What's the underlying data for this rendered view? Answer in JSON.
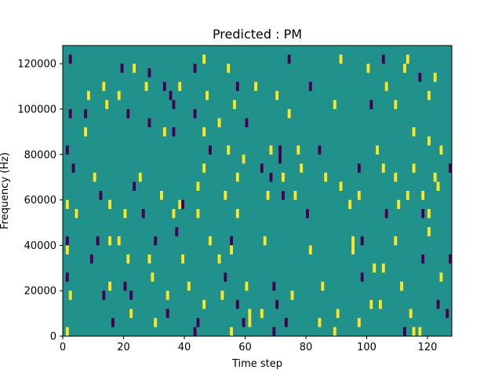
{
  "chart_data": {
    "type": "heatmap",
    "title": "Predicted : PM",
    "xlabel": "Time step",
    "ylabel": "Frequency (Hz)",
    "xlim": [
      0,
      128
    ],
    "ylim": [
      0,
      128000
    ],
    "xticks": [
      0,
      20,
      40,
      60,
      80,
      100,
      120
    ],
    "yticks": [
      0,
      20000,
      40000,
      60000,
      80000,
      100000,
      120000
    ],
    "ytick_labels": [
      "0",
      "20000",
      "40000",
      "60000",
      "80000",
      "100000",
      "120000"
    ],
    "colors": {
      "low": "#440154",
      "mid": "#21918c",
      "high": "#fde725"
    },
    "background_value": "mid",
    "cell_height_hz": 4000,
    "cells": [
      {
        "t": 3,
        "f": 122000,
        "v": "low"
      },
      {
        "t": 20,
        "f": 118000,
        "v": "low"
      },
      {
        "t": 24,
        "f": 118000,
        "v": "high"
      },
      {
        "t": 29,
        "f": 116000,
        "v": "low"
      },
      {
        "t": 44,
        "f": 118000,
        "v": "low"
      },
      {
        "t": 47,
        "f": 122000,
        "v": "high"
      },
      {
        "t": 55,
        "f": 118000,
        "v": "high"
      },
      {
        "t": 75,
        "f": 122000,
        "v": "low"
      },
      {
        "t": 92,
        "f": 122000,
        "v": "high"
      },
      {
        "t": 101,
        "f": 118000,
        "v": "high"
      },
      {
        "t": 106,
        "f": 122000,
        "v": "low"
      },
      {
        "t": 113,
        "f": 118000,
        "v": "high"
      },
      {
        "t": 114,
        "f": 122000,
        "v": "high"
      },
      {
        "t": 118,
        "f": 114000,
        "v": "low"
      },
      {
        "t": 123,
        "f": 114000,
        "v": "high"
      },
      {
        "t": 9,
        "f": 106000,
        "v": "high"
      },
      {
        "t": 14,
        "f": 110000,
        "v": "high"
      },
      {
        "t": 19,
        "f": 106000,
        "v": "high"
      },
      {
        "t": 28,
        "f": 110000,
        "v": "high"
      },
      {
        "t": 34,
        "f": 110000,
        "v": "low"
      },
      {
        "t": 39,
        "f": 110000,
        "v": "high"
      },
      {
        "t": 48,
        "f": 106000,
        "v": "high"
      },
      {
        "t": 58,
        "f": 110000,
        "v": "low"
      },
      {
        "t": 64,
        "f": 110000,
        "v": "high"
      },
      {
        "t": 71,
        "f": 106000,
        "v": "high"
      },
      {
        "t": 82,
        "f": 110000,
        "v": "low"
      },
      {
        "t": 107,
        "f": 110000,
        "v": "high"
      },
      {
        "t": 121,
        "f": 106000,
        "v": "high"
      },
      {
        "t": 36,
        "f": 106000,
        "v": "low"
      },
      {
        "t": 3,
        "f": 98000,
        "v": "low"
      },
      {
        "t": 15,
        "f": 102000,
        "v": "high"
      },
      {
        "t": 29,
        "f": 94000,
        "v": "low"
      },
      {
        "t": 37,
        "f": 102000,
        "v": "low"
      },
      {
        "t": 44,
        "f": 98000,
        "v": "low"
      },
      {
        "t": 57,
        "f": 102000,
        "v": "high"
      },
      {
        "t": 61,
        "f": 94000,
        "v": "low"
      },
      {
        "t": 75,
        "f": 98000,
        "v": "high"
      },
      {
        "t": 90,
        "f": 102000,
        "v": "high"
      },
      {
        "t": 102,
        "f": 102000,
        "v": "low"
      },
      {
        "t": 110,
        "f": 102000,
        "v": "high"
      },
      {
        "t": 8,
        "f": 98000,
        "v": "low"
      },
      {
        "t": 22,
        "f": 98000,
        "v": "low"
      },
      {
        "t": 47,
        "f": 90000,
        "v": "high"
      },
      {
        "t": 52,
        "f": 94000,
        "v": "high"
      },
      {
        "t": 2,
        "f": 82000,
        "v": "low"
      },
      {
        "t": 8,
        "f": 90000,
        "v": "high"
      },
      {
        "t": 34,
        "f": 90000,
        "v": "high"
      },
      {
        "t": 37,
        "f": 90000,
        "v": "low"
      },
      {
        "t": 49,
        "f": 82000,
        "v": "low"
      },
      {
        "t": 55,
        "f": 82000,
        "v": "high"
      },
      {
        "t": 69,
        "f": 82000,
        "v": "high"
      },
      {
        "t": 72,
        "f": 82000,
        "v": "low"
      },
      {
        "t": 72,
        "f": 78000,
        "v": "low"
      },
      {
        "t": 78,
        "f": 82000,
        "v": "high"
      },
      {
        "t": 85,
        "f": 82000,
        "v": "low"
      },
      {
        "t": 104,
        "f": 82000,
        "v": "high"
      },
      {
        "t": 116,
        "f": 90000,
        "v": "high"
      },
      {
        "t": 121,
        "f": 86000,
        "v": "high"
      },
      {
        "t": 125,
        "f": 82000,
        "v": "high"
      },
      {
        "t": 4,
        "f": 74000,
        "v": "low"
      },
      {
        "t": 11,
        "f": 70000,
        "v": "high"
      },
      {
        "t": 26,
        "f": 70000,
        "v": "high"
      },
      {
        "t": 47,
        "f": 74000,
        "v": "high"
      },
      {
        "t": 58,
        "f": 70000,
        "v": "high"
      },
      {
        "t": 60,
        "f": 78000,
        "v": "high"
      },
      {
        "t": 66,
        "f": 74000,
        "v": "low"
      },
      {
        "t": 69,
        "f": 70000,
        "v": "low"
      },
      {
        "t": 73,
        "f": 70000,
        "v": "high"
      },
      {
        "t": 79,
        "f": 74000,
        "v": "high"
      },
      {
        "t": 87,
        "f": 70000,
        "v": "high"
      },
      {
        "t": 98,
        "f": 74000,
        "v": "low"
      },
      {
        "t": 106,
        "f": 74000,
        "v": "high"
      },
      {
        "t": 110,
        "f": 70000,
        "v": "high"
      },
      {
        "t": 116,
        "f": 74000,
        "v": "high"
      },
      {
        "t": 123,
        "f": 70000,
        "v": "high"
      },
      {
        "t": 128,
        "f": 74000,
        "v": "low"
      },
      {
        "t": 13,
        "f": 62000,
        "v": "low"
      },
      {
        "t": 24,
        "f": 66000,
        "v": "low"
      },
      {
        "t": 33,
        "f": 62000,
        "v": "high"
      },
      {
        "t": 39,
        "f": 58000,
        "v": "high"
      },
      {
        "t": 45,
        "f": 66000,
        "v": "high"
      },
      {
        "t": 54,
        "f": 62000,
        "v": "high"
      },
      {
        "t": 68,
        "f": 62000,
        "v": "high"
      },
      {
        "t": 73,
        "f": 62000,
        "v": "low"
      },
      {
        "t": 77,
        "f": 62000,
        "v": "high"
      },
      {
        "t": 92,
        "f": 66000,
        "v": "high"
      },
      {
        "t": 98,
        "f": 62000,
        "v": "high"
      },
      {
        "t": 114,
        "f": 62000,
        "v": "high"
      },
      {
        "t": 119,
        "f": 62000,
        "v": "high"
      },
      {
        "t": 124,
        "f": 66000,
        "v": "high"
      },
      {
        "t": 2,
        "f": 58000,
        "v": "high"
      },
      {
        "t": 5,
        "f": 54000,
        "v": "high"
      },
      {
        "t": 16,
        "f": 58000,
        "v": "high"
      },
      {
        "t": 21,
        "f": 54000,
        "v": "high"
      },
      {
        "t": 27,
        "f": 54000,
        "v": "low"
      },
      {
        "t": 37,
        "f": 54000,
        "v": "high"
      },
      {
        "t": 40,
        "f": 58000,
        "v": "low"
      },
      {
        "t": 45,
        "f": 54000,
        "v": "high"
      },
      {
        "t": 58,
        "f": 54000,
        "v": "high"
      },
      {
        "t": 81,
        "f": 54000,
        "v": "low"
      },
      {
        "t": 95,
        "f": 58000,
        "v": "high"
      },
      {
        "t": 107,
        "f": 54000,
        "v": "low"
      },
      {
        "t": 111,
        "f": 58000,
        "v": "high"
      },
      {
        "t": 119,
        "f": 54000,
        "v": "low"
      },
      {
        "t": 121,
        "f": 54000,
        "v": "high"
      },
      {
        "t": 2,
        "f": 42000,
        "v": "low"
      },
      {
        "t": 12,
        "f": 42000,
        "v": "low"
      },
      {
        "t": 16,
        "f": 42000,
        "v": "high"
      },
      {
        "t": 19,
        "f": 42000,
        "v": "high"
      },
      {
        "t": 31,
        "f": 42000,
        "v": "low"
      },
      {
        "t": 38,
        "f": 46000,
        "v": "low"
      },
      {
        "t": 49,
        "f": 42000,
        "v": "high"
      },
      {
        "t": 56,
        "f": 42000,
        "v": "low"
      },
      {
        "t": 67,
        "f": 42000,
        "v": "high"
      },
      {
        "t": 96,
        "f": 42000,
        "v": "high"
      },
      {
        "t": 99,
        "f": 42000,
        "v": "low"
      },
      {
        "t": 110,
        "f": 42000,
        "v": "high"
      },
      {
        "t": 121,
        "f": 46000,
        "v": "high"
      },
      {
        "t": 2,
        "f": 38000,
        "v": "high"
      },
      {
        "t": 10,
        "f": 34000,
        "v": "low"
      },
      {
        "t": 22,
        "f": 34000,
        "v": "high"
      },
      {
        "t": 29,
        "f": 34000,
        "v": "high"
      },
      {
        "t": 40,
        "f": 34000,
        "v": "high"
      },
      {
        "t": 52,
        "f": 34000,
        "v": "high"
      },
      {
        "t": 56,
        "f": 38000,
        "v": "high"
      },
      {
        "t": 82,
        "f": 38000,
        "v": "high"
      },
      {
        "t": 96,
        "f": 38000,
        "v": "high"
      },
      {
        "t": 103,
        "f": 30000,
        "v": "high"
      },
      {
        "t": 119,
        "f": 34000,
        "v": "low"
      },
      {
        "t": 128,
        "f": 34000,
        "v": "low"
      },
      {
        "t": 2,
        "f": 26000,
        "v": "low"
      },
      {
        "t": 16,
        "f": 22000,
        "v": "high"
      },
      {
        "t": 21,
        "f": 22000,
        "v": "low"
      },
      {
        "t": 30,
        "f": 26000,
        "v": "high"
      },
      {
        "t": 42,
        "f": 22000,
        "v": "high"
      },
      {
        "t": 54,
        "f": 26000,
        "v": "low"
      },
      {
        "t": 61,
        "f": 22000,
        "v": "high"
      },
      {
        "t": 70,
        "f": 22000,
        "v": "low"
      },
      {
        "t": 86,
        "f": 22000,
        "v": "high"
      },
      {
        "t": 99,
        "f": 26000,
        "v": "low"
      },
      {
        "t": 106,
        "f": 30000,
        "v": "high"
      },
      {
        "t": 112,
        "f": 22000,
        "v": "high"
      },
      {
        "t": 125,
        "f": 26000,
        "v": "high"
      },
      {
        "t": 3,
        "f": 18000,
        "v": "high"
      },
      {
        "t": 14,
        "f": 18000,
        "v": "low"
      },
      {
        "t": 23,
        "f": 18000,
        "v": "low"
      },
      {
        "t": 35,
        "f": 18000,
        "v": "high"
      },
      {
        "t": 47,
        "f": 14000,
        "v": "high"
      },
      {
        "t": 53,
        "f": 18000,
        "v": "high"
      },
      {
        "t": 58,
        "f": 14000,
        "v": "low"
      },
      {
        "t": 62,
        "f": 10000,
        "v": "high"
      },
      {
        "t": 66,
        "f": 10000,
        "v": "high"
      },
      {
        "t": 71,
        "f": 14000,
        "v": "low"
      },
      {
        "t": 76,
        "f": 18000,
        "v": "high"
      },
      {
        "t": 91,
        "f": 10000,
        "v": "high"
      },
      {
        "t": 102,
        "f": 14000,
        "v": "high"
      },
      {
        "t": 105,
        "f": 14000,
        "v": "high"
      },
      {
        "t": 115,
        "f": 10000,
        "v": "high"
      },
      {
        "t": 124,
        "f": 14000,
        "v": "low"
      },
      {
        "t": 127,
        "f": 10000,
        "v": "low"
      },
      {
        "t": 2,
        "f": 2000,
        "v": "high"
      },
      {
        "t": 17,
        "f": 6000,
        "v": "low"
      },
      {
        "t": 23,
        "f": 10000,
        "v": "high"
      },
      {
        "t": 31,
        "f": 6000,
        "v": "high"
      },
      {
        "t": 35,
        "f": 10000,
        "v": "low"
      },
      {
        "t": 44,
        "f": 2000,
        "v": "low"
      },
      {
        "t": 45,
        "f": 6000,
        "v": "low"
      },
      {
        "t": 56,
        "f": 2000,
        "v": "high"
      },
      {
        "t": 60,
        "f": 6000,
        "v": "low"
      },
      {
        "t": 62,
        "f": 6000,
        "v": "high"
      },
      {
        "t": 70,
        "f": 2000,
        "v": "low"
      },
      {
        "t": 74,
        "f": 6000,
        "v": "low"
      },
      {
        "t": 85,
        "f": 6000,
        "v": "high"
      },
      {
        "t": 90,
        "f": 2000,
        "v": "high"
      },
      {
        "t": 98,
        "f": 6000,
        "v": "high"
      },
      {
        "t": 113,
        "f": 2000,
        "v": "low"
      },
      {
        "t": 116,
        "f": 2000,
        "v": "high"
      },
      {
        "t": 118,
        "f": 2000,
        "v": "high"
      }
    ]
  }
}
